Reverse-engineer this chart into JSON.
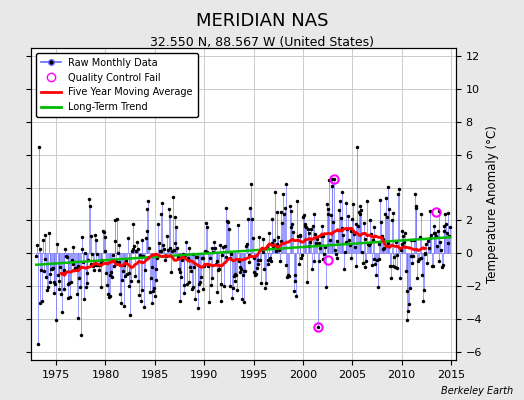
{
  "title": "MERIDIAN NAS",
  "subtitle": "32.550 N, 88.567 W (United States)",
  "ylabel": "Temperature Anomaly (°C)",
  "attribution": "Berkeley Earth",
  "xlim": [
    1972.5,
    2015.5
  ],
  "ylim": [
    -6.5,
    12.5
  ],
  "yticks": [
    -6,
    -4,
    -2,
    0,
    2,
    4,
    6,
    8,
    10,
    12
  ],
  "xticks": [
    1975,
    1980,
    1985,
    1990,
    1995,
    2000,
    2005,
    2010,
    2015
  ],
  "bg_color": "#e8e8e8",
  "plot_bg": "#ffffff",
  "raw_line_color": "#6666ff",
  "raw_dot_color": "#000000",
  "ma_color": "#ff0000",
  "trend_color": "#00bb00",
  "qc_color": "#ff00ff",
  "title_fontsize": 13,
  "subtitle_fontsize": 9,
  "axis_fontsize": 8,
  "figsize": [
    5.24,
    4.0
  ],
  "dpi": 100,
  "qc_times": [
    2001.5,
    2002.5,
    2003.2,
    2013.5
  ],
  "qc_vals": [
    -4.5,
    -0.4,
    4.5,
    2.5
  ],
  "trend_slope": 0.04,
  "trend_intercept": -0.7
}
